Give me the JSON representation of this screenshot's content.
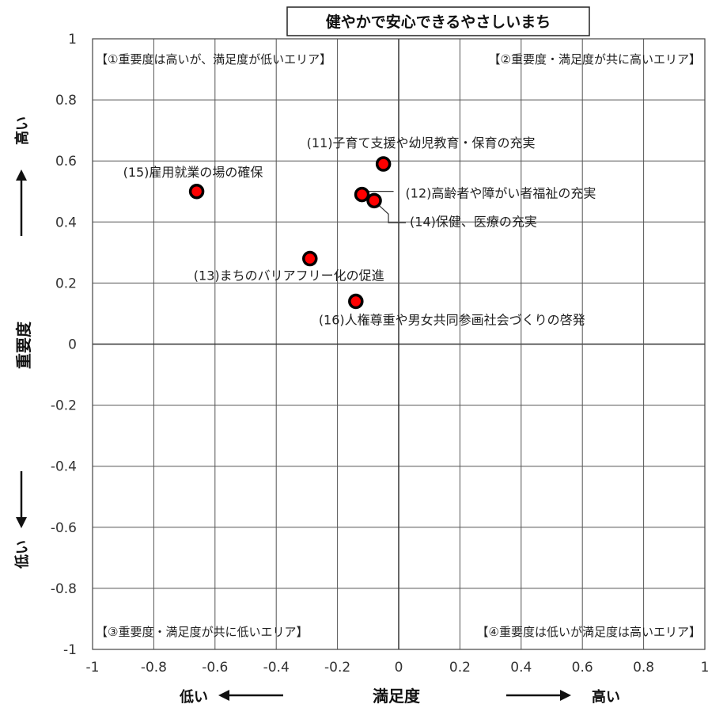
{
  "chart_data": {
    "type": "scatter",
    "title": "健やかで安心できるやさしいまち",
    "xlabel": "満足度",
    "ylabel": "重要度",
    "xlim": [
      -1,
      1
    ],
    "ylim": [
      -1,
      1
    ],
    "x_ticks": [
      "-1",
      "-0.8",
      "-0.6",
      "-0.4",
      "-0.2",
      "0",
      "0.2",
      "0.4",
      "0.6",
      "0.8",
      "1"
    ],
    "y_ticks": [
      "1",
      "0.8",
      "0.6",
      "0.4",
      "0.2",
      "0",
      "-0.2",
      "-0.4",
      "-0.6",
      "-0.8",
      "-1"
    ],
    "grid": true,
    "x_low": "低い",
    "x_high": "高い",
    "y_low": "低い",
    "y_high": "高い",
    "quadrants": {
      "q1": "【①重要度は高いが、満足度が低いエリア】",
      "q2": "【②重要度・満足度が共に高いエリア】",
      "q3": "【③重要度・満足度が共に低いエリア】",
      "q4": "【④重要度は低いが満足度は高いエリア】"
    },
    "points": [
      {
        "label": "(11)子育て支援や幼児教育・保育の充実",
        "x": -0.05,
        "y": 0.59
      },
      {
        "label": "(12)高齢者や障がい者福祉の充実",
        "x": -0.12,
        "y": 0.49
      },
      {
        "label": "(13)まちのバリアフリー化の促進",
        "x": -0.29,
        "y": 0.28
      },
      {
        "label": "(14)保健、医療の充実",
        "x": -0.08,
        "y": 0.47
      },
      {
        "label": "(15)雇用就業の場の確保",
        "x": -0.66,
        "y": 0.5
      },
      {
        "label": "(16)人権尊重や男女共同参画社会づくりの啓発",
        "x": -0.14,
        "y": 0.14
      }
    ],
    "marker_fill": "#ff0000",
    "marker_stroke": "#000000"
  }
}
